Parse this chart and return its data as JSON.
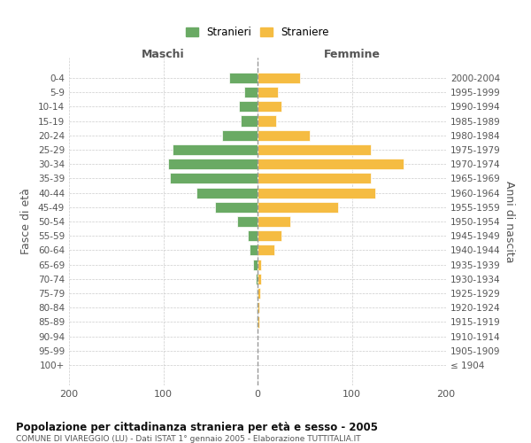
{
  "age_groups": [
    "0-4",
    "5-9",
    "10-14",
    "15-19",
    "20-24",
    "25-29",
    "30-34",
    "35-39",
    "40-44",
    "45-49",
    "50-54",
    "55-59",
    "60-64",
    "65-69",
    "70-74",
    "75-79",
    "80-84",
    "85-89",
    "90-94",
    "95-99",
    "100+"
  ],
  "birth_years": [
    "2000-2004",
    "1995-1999",
    "1990-1994",
    "1985-1989",
    "1980-1984",
    "1975-1979",
    "1970-1974",
    "1965-1969",
    "1960-1964",
    "1955-1959",
    "1950-1954",
    "1945-1949",
    "1940-1944",
    "1935-1939",
    "1930-1934",
    "1925-1929",
    "1920-1924",
    "1915-1919",
    "1910-1914",
    "1905-1909",
    "≤ 1904"
  ],
  "maschi": [
    30,
    14,
    20,
    18,
    38,
    90,
    95,
    93,
    65,
    45,
    22,
    10,
    8,
    5,
    2,
    1,
    1,
    1,
    0,
    0,
    0
  ],
  "femmine": [
    45,
    22,
    25,
    20,
    55,
    120,
    155,
    120,
    125,
    85,
    35,
    25,
    18,
    4,
    4,
    3,
    2,
    2,
    0,
    0,
    0
  ],
  "male_color": "#6aaa64",
  "female_color": "#f5bc42",
  "background_color": "#ffffff",
  "grid_color": "#cccccc",
  "zero_line_color": "#999999",
  "xlim": 200,
  "title": "Popolazione per cittadinanza straniera per età e sesso - 2005",
  "subtitle": "COMUNE DI VIAREGGIO (LU) - Dati ISTAT 1° gennaio 2005 - Elaborazione TUTTITALIA.IT",
  "ylabel_left": "Fasce di età",
  "ylabel_right": "Anni di nascita",
  "xlabel_left": "Maschi",
  "xlabel_right": "Femmine",
  "legend_male": "Stranieri",
  "legend_female": "Straniere"
}
